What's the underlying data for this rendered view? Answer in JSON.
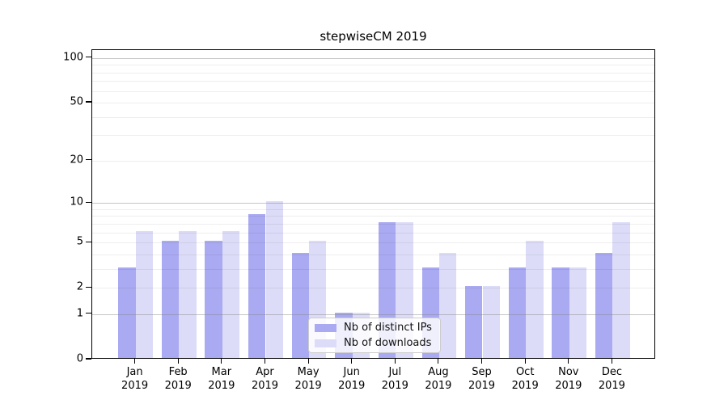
{
  "title": "stepwiseCM 2019",
  "chart_data": {
    "type": "bar",
    "title": "stepwiseCM 2019",
    "categories": [
      "Jan",
      "Feb",
      "Mar",
      "Apr",
      "May",
      "Jun",
      "Jul",
      "Aug",
      "Sep",
      "Oct",
      "Nov",
      "Dec"
    ],
    "year_label": "2019",
    "series": [
      {
        "name": "Nb of distinct IPs",
        "color": "#aaaaf2",
        "values": [
          3,
          5,
          5,
          8,
          4,
          1,
          7,
          3,
          2,
          3,
          3,
          4
        ]
      },
      {
        "name": "Nb of downloads",
        "color": "#dcdcf8",
        "values": [
          6,
          6,
          6,
          10,
          5,
          1,
          7,
          4,
          2,
          5,
          3,
          7
        ]
      }
    ],
    "scale": "log1p",
    "ylim": [
      0,
      113
    ],
    "y_ticks": [
      0,
      1,
      2,
      5,
      10,
      20,
      50,
      100
    ],
    "gridlines": {
      "major": [
        1,
        10,
        100
      ],
      "minor": [
        2,
        3,
        4,
        5,
        6,
        7,
        8,
        9,
        20,
        30,
        40,
        50,
        60,
        70,
        80,
        90
      ]
    },
    "grid": true,
    "legend_position": "lower center",
    "xlabel": "",
    "ylabel": ""
  },
  "colors": {
    "axis": "#000000",
    "grid_major": "#b9b9b9",
    "grid_minor": "#ebebeb",
    "bar_distinct_ips": "#aaaaf2",
    "bar_downloads": "#dcdcf8",
    "legend_border": "#cccccc"
  }
}
